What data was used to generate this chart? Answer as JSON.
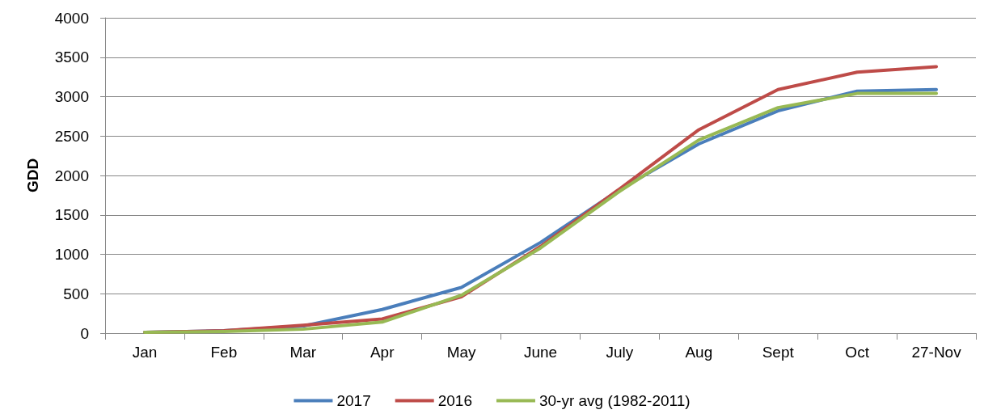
{
  "chart_data": {
    "type": "line",
    "ylabel": "GDD",
    "categories": [
      "Jan",
      "Feb",
      "Mar",
      "Apr",
      "May",
      "June",
      "July",
      "Aug",
      "Sept",
      "Oct",
      "27-Nov"
    ],
    "series": [
      {
        "name": "2017",
        "color": "#4a7ebb",
        "values": [
          10,
          30,
          90,
          300,
          580,
          1150,
          1820,
          2400,
          2820,
          3070,
          3090
        ]
      },
      {
        "name": "2016",
        "color": "#be4b48",
        "values": [
          10,
          30,
          100,
          180,
          460,
          1100,
          1830,
          2580,
          3090,
          3310,
          3380
        ]
      },
      {
        "name": "30-yr avg (1982-2011)",
        "color": "#98b954",
        "values": [
          10,
          20,
          50,
          140,
          480,
          1080,
          1800,
          2450,
          2860,
          3040,
          3040
        ]
      }
    ],
    "ylim": [
      0,
      4000
    ],
    "yticks": [
      0,
      500,
      1000,
      1500,
      2000,
      2500,
      3000,
      3500,
      4000
    ],
    "grid": "y",
    "legend": "bottom",
    "marker": "none",
    "line_style": "solid"
  }
}
